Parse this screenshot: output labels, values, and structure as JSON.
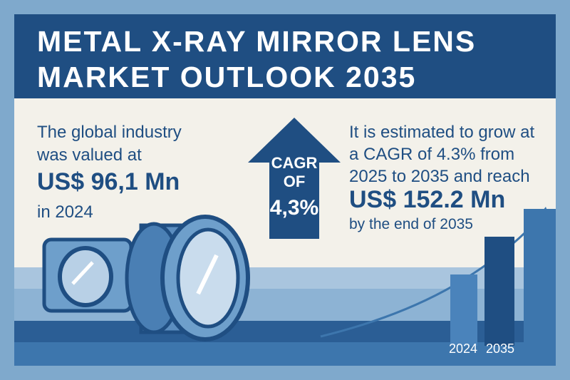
{
  "title": {
    "line1": "METAL X-RAY MIRROR LENS",
    "line2": "MARKET OUTLOOK 2035"
  },
  "left_block": {
    "line1": "The global industry",
    "line2": "was valued at",
    "value": "US$ 96,1 Mn",
    "line4": "in 2024"
  },
  "cagr_arrow": {
    "line1": "CAGR",
    "line2": "OF",
    "line3": "4,3%"
  },
  "right_block": {
    "line1": "It is estimated to grow at",
    "line2": "a CAGR of 4.3% from",
    "line3": "2025 to 2035 and reach",
    "value": "US$ 152.2 Mn",
    "line5": "by the end of 2035"
  },
  "bar_labels": {
    "year_a": "2024",
    "year_b": "2035"
  },
  "colors": {
    "navy": "#1f4e82",
    "mid_blue": "#3d76ad",
    "light_blue": "#7fa9cc",
    "pale_blue": "#a9c5de",
    "cream": "#f3f1ea"
  },
  "icons": [
    "arrow-up-icon",
    "lens-icon",
    "mirror-icon",
    "growth-curve-icon"
  ]
}
